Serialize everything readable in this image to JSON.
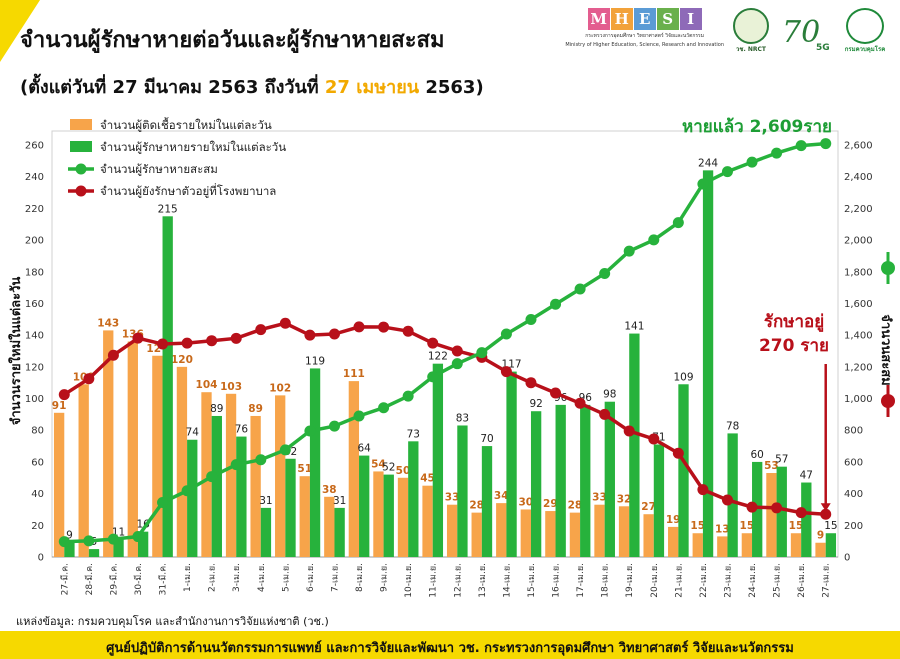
{
  "header": {
    "title": "จำนวนผู้รักษาหายต่อวันและผู้รักษาหายสะสม",
    "subtitle_prefix": "(ตั้งแต่วันที่ 27 มีนาคม 2563 ถึงวันที่ ",
    "subtitle_highlight": "27 เมษายน",
    "subtitle_suffix": " 2563)"
  },
  "logos": {
    "mhesi_letters": [
      "M",
      "H",
      "E",
      "S",
      "I"
    ],
    "mhesi_colors": [
      "#e35d8f",
      "#f2a23a",
      "#5b9bd5",
      "#6ab04c",
      "#8e6ab8"
    ],
    "mhesi_caption": "กระทรวงการอุดมศึกษา วิทยาศาสตร์ วิจัยและนวัตกรรม",
    "mhesi_caption_en": "Ministry of Higher Education, Science, Research and Innovation",
    "nrct_label": "วช. NRCT",
    "logo_70_label": "70",
    "logo_5g_label": "5G",
    "moph_label": "กรมควบคุมโรค"
  },
  "chart_data": {
    "type": "bar",
    "categories": [
      "27-มี.ค.",
      "28-มี.ค.",
      "29-มี.ค.",
      "30-มี.ค.",
      "31-มี.ค.",
      "1-เม.ย.",
      "2-เม.ย.",
      "3-เม.ย.",
      "4-เม.ย.",
      "5-เม.ย.",
      "6-เม.ย.",
      "7-เม.ย.",
      "8-เม.ย.",
      "9-เม.ย.",
      "10-เม.ย.",
      "11-เม.ย.",
      "12-เม.ย.",
      "13-เม.ย.",
      "14-เม.ย.",
      "15-เม.ย.",
      "16-เม.ย.",
      "17-เม.ย.",
      "18-เม.ย.",
      "19-เม.ย.",
      "20-เม.ย.",
      "21-เม.ย.",
      "22-เม.ย.",
      "23-เม.ย.",
      "24-เม.ย.",
      "25-เม.ย.",
      "26-เม.ย.",
      "27-เม.ย."
    ],
    "series": [
      {
        "name": "จำนวนผู้ติดเชื้อรายใหม่ในแต่ละวัน",
        "kind": "bar",
        "axis": "left",
        "color": "#f7a44a",
        "label_color": "#c8691a",
        "values": [
          91,
          109,
          143,
          136,
          127,
          120,
          104,
          103,
          89,
          102,
          51,
          38,
          111,
          54,
          50,
          45,
          33,
          28,
          34,
          30,
          29,
          28,
          33,
          32,
          27,
          19,
          15,
          13,
          15,
          53,
          15,
          9
        ]
      },
      {
        "name": "จำนวนผู้รักษาหายรายใหม่ในแต่ละวัน",
        "kind": "bar",
        "axis": "left",
        "color": "#27b23c",
        "label_color": "#222222",
        "values": [
          9,
          5,
          11,
          16,
          215,
          74,
          89,
          76,
          31,
          62,
          119,
          31,
          64,
          52,
          73,
          122,
          83,
          70,
          117,
          92,
          96,
          96,
          98,
          141,
          71,
          109,
          244,
          78,
          60,
          57,
          47,
          15
        ]
      },
      {
        "name": "จำนวนผู้รักษาหายสะสม",
        "kind": "line",
        "axis": "right",
        "color": "#27b23c",
        "values": [
          97,
          102,
          113,
          129,
          344,
          418,
          507,
          583,
          614,
          676,
          795,
          826,
          890,
          942,
          1015,
          1137,
          1220,
          1290,
          1407,
          1499,
          1595,
          1691,
          1789,
          1930,
          2001,
          2110,
          2354,
          2432,
          2492,
          2549,
          2596,
          2609
        ]
      },
      {
        "name": "จำนวนผู้ยังรักษาตัวอยู่ที่โรงพยาบาล",
        "kind": "line",
        "axis": "right",
        "color": "#b8101a",
        "values": [
          1025,
          1125,
          1273,
          1381,
          1344,
          1350,
          1365,
          1380,
          1435,
          1475,
          1400,
          1407,
          1452,
          1451,
          1425,
          1350,
          1300,
          1260,
          1170,
          1100,
          1035,
          970,
          900,
          795,
          745,
          655,
          425,
          360,
          315,
          310,
          280,
          270
        ]
      }
    ],
    "ylabel": "จำนวนรายใหม่ในแต่ละวัน",
    "y2label": "จำนวนสะสม",
    "ylim": [
      0,
      260
    ],
    "yticks": [
      0,
      20,
      40,
      60,
      80,
      100,
      120,
      140,
      160,
      180,
      200,
      220,
      240,
      260
    ],
    "y2lim": [
      0,
      2600
    ],
    "y2ticks": [
      "0",
      "200",
      "400",
      "600",
      "800",
      "1,000",
      "1,200",
      "1,400",
      "1,600",
      "1,800",
      "2,000",
      "2,200",
      "2,400",
      "2,600"
    ],
    "grid": false,
    "legend": "top-left",
    "annotations": {
      "recovered_total": "หายแล้ว 2,609ราย",
      "in_hospital_line1": "รักษาอยู่",
      "in_hospital_line2": "270 ราย"
    },
    "colors": {
      "annotation_green": "#1e9e35",
      "annotation_red": "#b8101a"
    }
  },
  "footer": {
    "source": "แหล่งข้อมูล: กรมควบคุมโรค และสำนักงานการวิจัยแห่งชาติ (วช.)",
    "banner": "ศูนย์ปฏิบัติการด้านนวัตกรรมการแพทย์ และการวิจัยและพัฒนา   วช.   กระทรวงการอุดมศึกษา วิทยาศาสตร์ วิจัยและนวัตกรรม"
  }
}
